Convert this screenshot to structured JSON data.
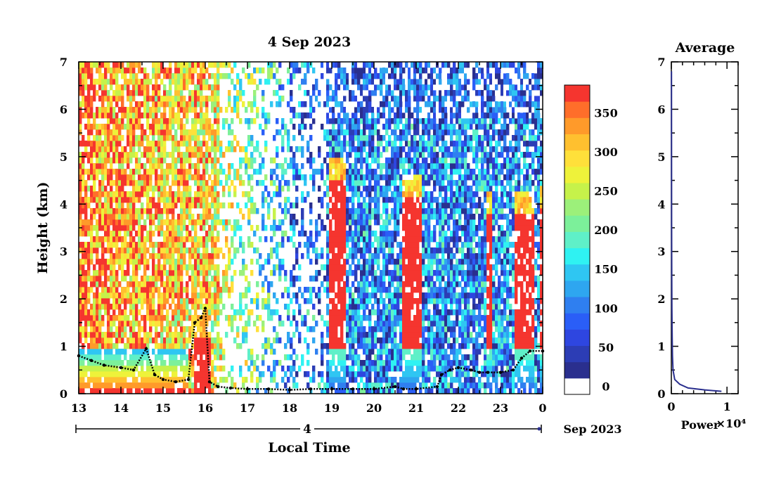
{
  "chart_data": [
    {
      "type": "heatmap",
      "title": "4 Sep 2023",
      "xlabel": "Local Time",
      "ylabel": "Height (km)",
      "x_tick_labels": [
        "13",
        "14",
        "15",
        "16",
        "17",
        "18",
        "19",
        "20",
        "21",
        "22",
        "23",
        "0"
      ],
      "y_tick_labels": [
        "0",
        "1",
        "2",
        "3",
        "4",
        "5",
        "6",
        "7"
      ],
      "xlim": [
        13,
        24
      ],
      "ylim": [
        0,
        7
      ],
      "date_axis": {
        "day_label": "4",
        "month_label": "Sep 2023"
      },
      "colorbar": {
        "tick_labels": [
          "0",
          "50",
          "100",
          "150",
          "200",
          "250",
          "300",
          "350"
        ],
        "range": [
          0,
          375
        ],
        "colors": [
          "#ffffff",
          "#2a2f8e",
          "#2c3db5",
          "#2e46e0",
          "#2a5ef7",
          "#2f7ff0",
          "#2ea6f0",
          "#2fc6f2",
          "#2ff2f2",
          "#5ff0c8",
          "#7cf09a",
          "#9cf07a",
          "#c6f24a",
          "#eef23a",
          "#ffe03a",
          "#ffc02f",
          "#ff9a2a",
          "#ff6e2a",
          "#f5352f"
        ]
      },
      "boundary_layer_height_km": {
        "x": [
          13.0,
          13.3,
          13.6,
          14.0,
          14.3,
          14.6,
          14.8,
          15.0,
          15.3,
          15.6,
          15.75,
          15.9,
          16.0,
          16.1,
          16.3,
          16.6,
          17.0,
          17.5,
          18.0,
          18.5,
          19.0,
          19.5,
          20.0,
          20.5,
          20.7,
          21.0,
          21.5,
          21.6,
          21.8,
          22.0,
          22.3,
          22.5,
          22.7,
          23.0,
          23.3,
          23.5,
          23.7,
          24.0
        ],
        "y": [
          0.8,
          0.7,
          0.6,
          0.55,
          0.5,
          0.95,
          0.4,
          0.3,
          0.25,
          0.3,
          1.5,
          1.6,
          1.8,
          0.25,
          0.15,
          0.12,
          0.1,
          0.1,
          0.08,
          0.1,
          0.1,
          0.1,
          0.1,
          0.15,
          0.1,
          0.1,
          0.15,
          0.4,
          0.5,
          0.55,
          0.5,
          0.45,
          0.45,
          0.45,
          0.5,
          0.75,
          0.9,
          0.9
        ]
      },
      "rain_periods": [
        {
          "start": 15.75,
          "end": 16.15,
          "top_km": 1.7
        },
        {
          "start": 18.95,
          "end": 19.35,
          "top_km": 5.0
        },
        {
          "start": 20.65,
          "end": 21.15,
          "top_km": 4.6
        },
        {
          "start": 22.7,
          "end": 22.8,
          "top_km": 4.3
        },
        {
          "start": 23.35,
          "end": 23.8,
          "top_km": 4.3
        },
        {
          "start": 23.95,
          "end": 24.0,
          "top_km": 4.4
        }
      ]
    },
    {
      "type": "line",
      "title": "Average",
      "xlabel": "Power",
      "x_exponent_label": "×10⁴",
      "x_tick_labels": [
        "0",
        "1"
      ],
      "y_tick_labels": [
        "0",
        "1",
        "2",
        "3",
        "4",
        "5",
        "6",
        "7"
      ],
      "xlim": [
        0,
        12000
      ],
      "ylim": [
        0,
        7
      ],
      "x": [
        9000,
        6000,
        3000,
        1500,
        600,
        300,
        200,
        150,
        100,
        80,
        60,
        50,
        40,
        30
      ],
      "y": [
        0.05,
        0.08,
        0.12,
        0.2,
        0.3,
        0.5,
        0.8,
        1.2,
        1.8,
        2.5,
        3.0,
        3.6,
        5.0,
        6.8
      ]
    }
  ]
}
